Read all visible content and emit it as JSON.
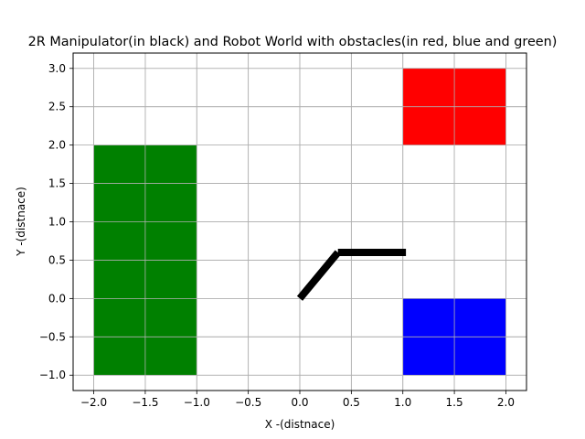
{
  "chart_data": {
    "type": "scatter",
    "title": "2R Manipulator(in black) and Robot World with obstacles(in red, blue and green)",
    "xlabel": "X -(distnace)",
    "ylabel": "Y -(distnace)",
    "xlim": [
      -2.2,
      2.2
    ],
    "ylim": [
      -1.2,
      3.2
    ],
    "grid": true,
    "xticks": [
      -2.0,
      -1.5,
      -1.0,
      -0.5,
      0.0,
      0.5,
      1.0,
      1.5,
      2.0
    ],
    "xtick_labels": [
      "−2.0",
      "−1.5",
      "−1.0",
      "−0.5",
      "0.0",
      "0.5",
      "1.0",
      "1.5",
      "2.0"
    ],
    "yticks": [
      -1.0,
      -0.5,
      0.0,
      0.5,
      1.0,
      1.5,
      2.0,
      2.5,
      3.0
    ],
    "ytick_labels": [
      "−1.0",
      "−0.5",
      "0.0",
      "0.5",
      "1.0",
      "1.5",
      "2.0",
      "2.5",
      "3.0"
    ],
    "obstacles": [
      {
        "name": "red-obstacle",
        "color": "#ff0000",
        "x": [
          1.0,
          2.0
        ],
        "y": [
          2.0,
          3.0
        ]
      },
      {
        "name": "blue-obstacle",
        "color": "#0000ff",
        "x": [
          1.0,
          2.0
        ],
        "y": [
          -1.0,
          0.0
        ]
      },
      {
        "name": "green-obstacle",
        "color": "#008000",
        "x": [
          -2.0,
          -1.0
        ],
        "y": [
          -1.0,
          2.0
        ]
      }
    ],
    "manipulator": {
      "color": "#000000",
      "joints": [
        [
          0.0,
          0.0
        ],
        [
          0.37,
          0.6
        ],
        [
          1.03,
          0.6
        ]
      ]
    }
  }
}
